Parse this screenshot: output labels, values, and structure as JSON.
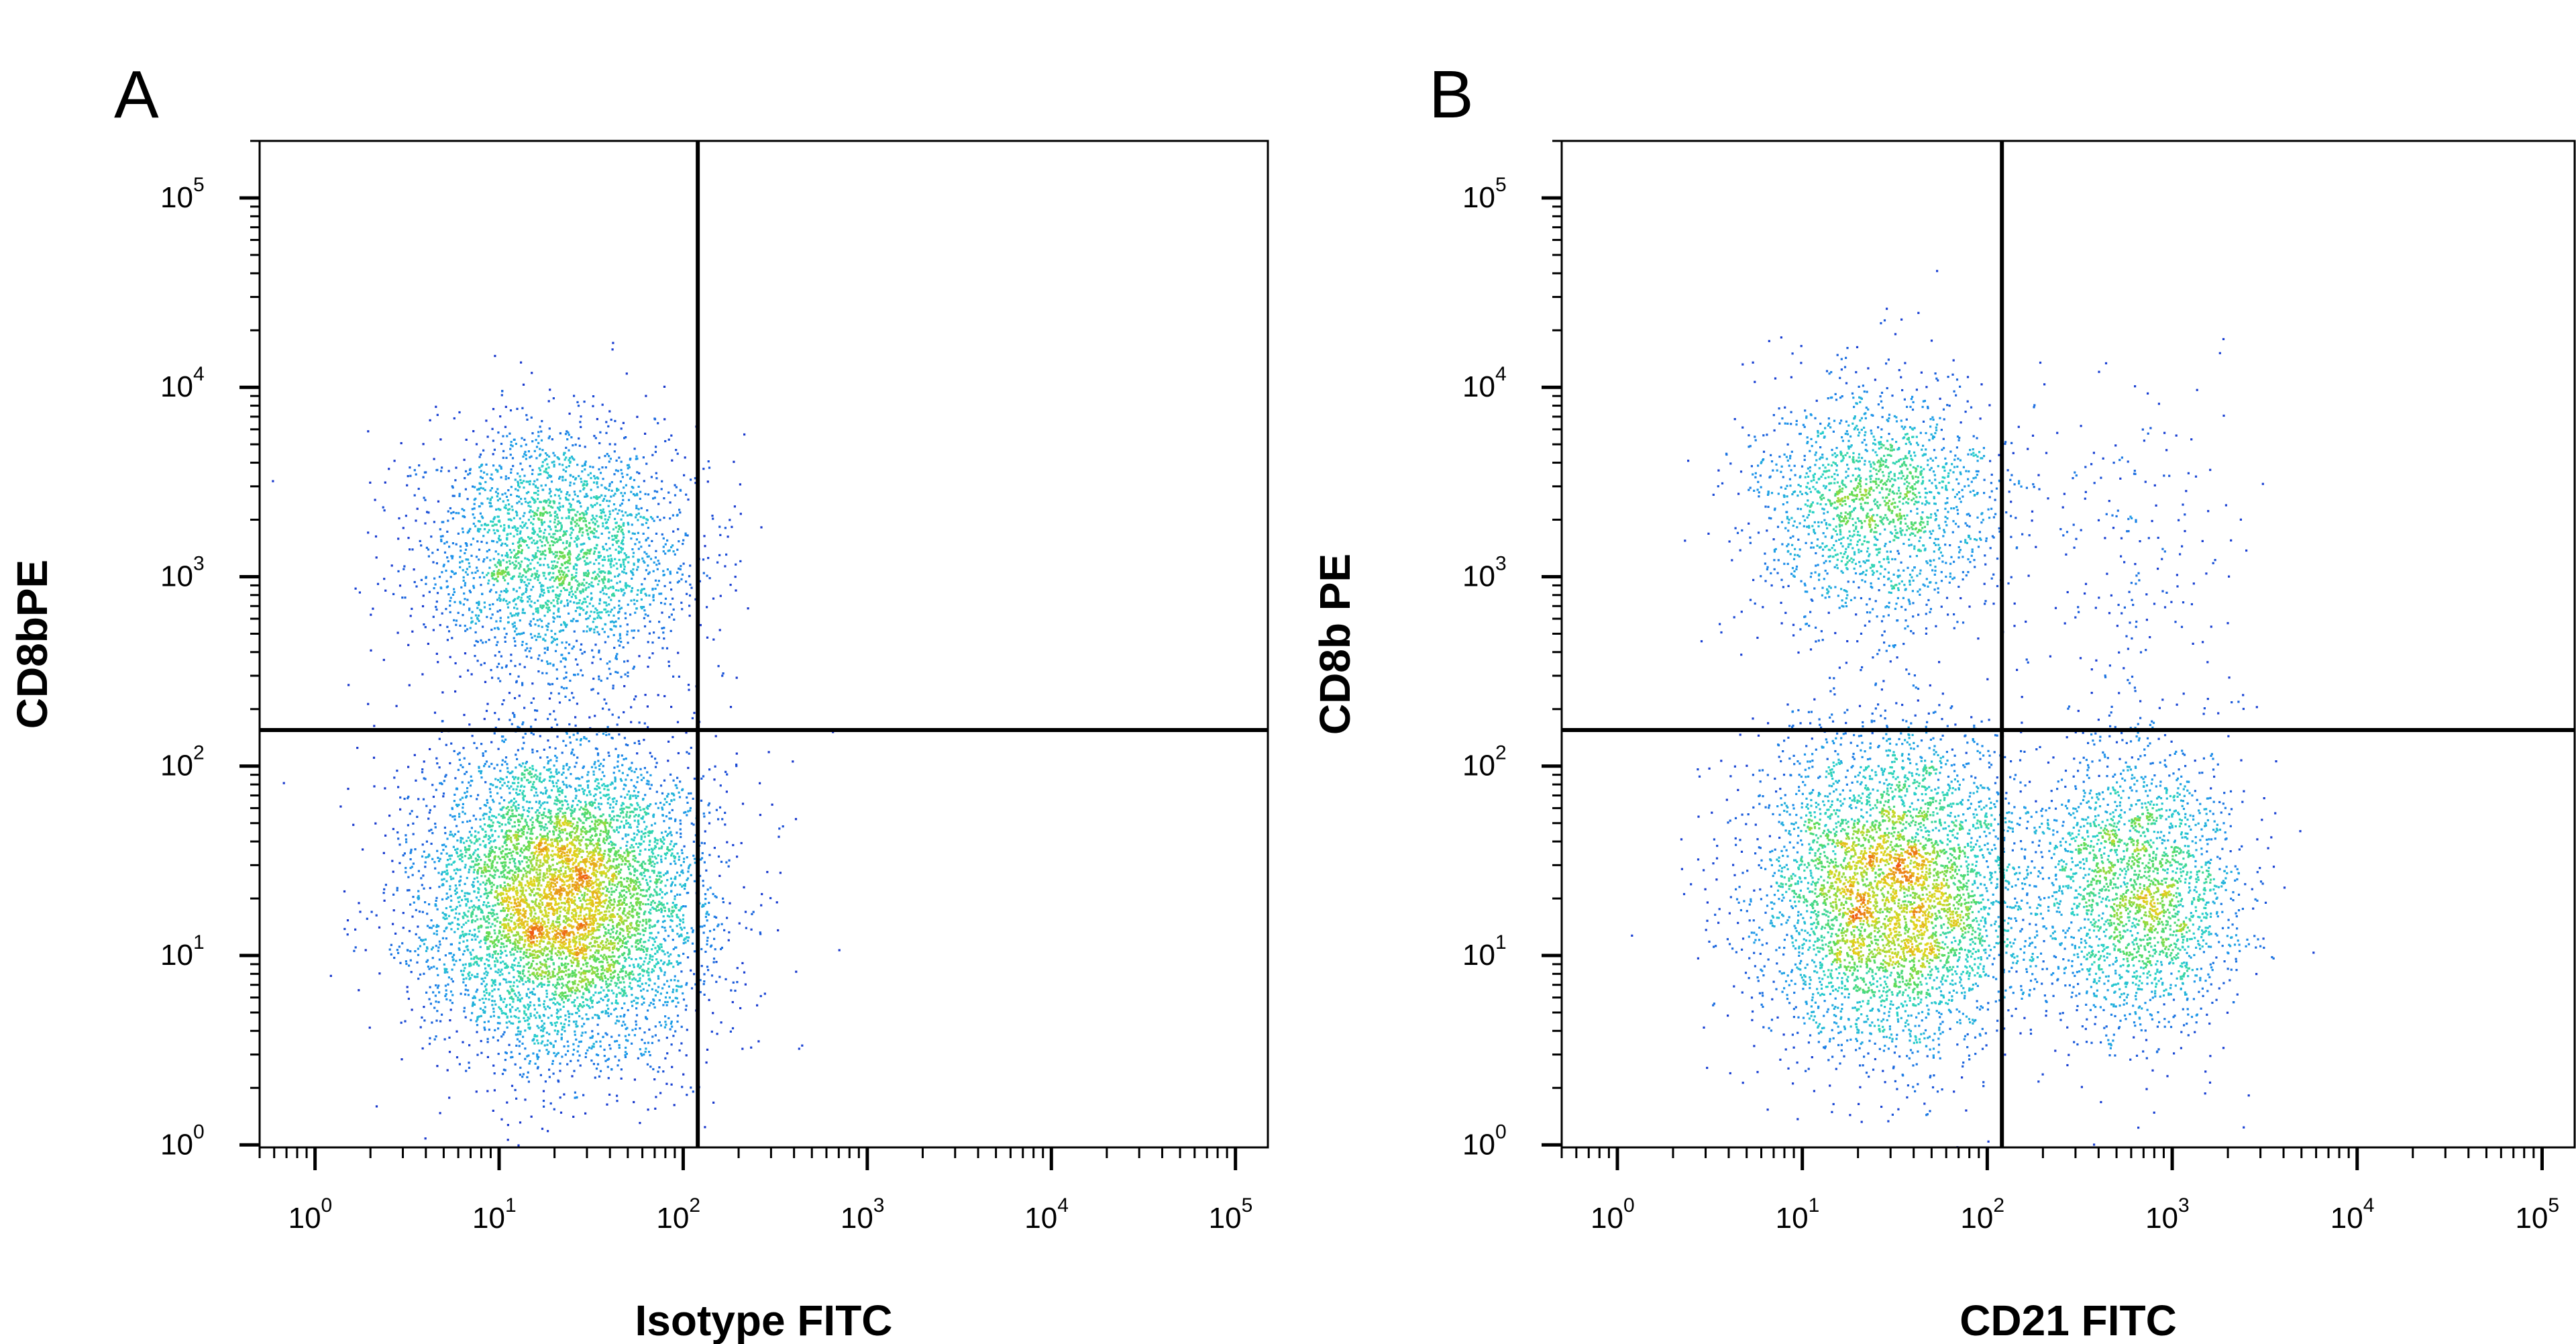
{
  "chart_data": [
    {
      "type": "scatter",
      "panel_label": "A",
      "xlabel": "Isotype FITC",
      "ylabel": "CD8bPE",
      "x_scale": "log",
      "y_scale": "log",
      "xlim": [
        0.5,
        150000
      ],
      "ylim": [
        0.97,
        200000
      ],
      "x_ticks": [
        {
          "base": "10",
          "exp": "0",
          "value": 1
        },
        {
          "base": "10",
          "exp": "1",
          "value": 10
        },
        {
          "base": "10",
          "exp": "2",
          "value": 100
        },
        {
          "base": "10",
          "exp": "3",
          "value": 1000
        },
        {
          "base": "10",
          "exp": "4",
          "value": 10000
        },
        {
          "base": "10",
          "exp": "5",
          "value": 100000
        }
      ],
      "y_ticks": [
        {
          "base": "10",
          "exp": "0",
          "value": 1
        },
        {
          "base": "10",
          "exp": "1",
          "value": 10
        },
        {
          "base": "10",
          "exp": "2",
          "value": 100
        },
        {
          "base": "10",
          "exp": "3",
          "value": 1000
        },
        {
          "base": "10",
          "exp": "4",
          "value": 10000
        },
        {
          "base": "10",
          "exp": "5",
          "value": 100000
        }
      ],
      "quadrant_gate": {
        "x": 120,
        "y": 155
      },
      "populations": [
        {
          "name": "CD8b- / isotype-",
          "center_x": 22,
          "center_y": 20,
          "spread_log_x": 0.38,
          "spread_log_y": 0.42,
          "weight": 0.72
        },
        {
          "name": "CD8b+ / isotype-",
          "center_x": 20,
          "center_y": 1400,
          "spread_log_x": 0.36,
          "spread_log_y": 0.32,
          "weight": 0.28
        }
      ],
      "grid": false,
      "legend": "none"
    },
    {
      "type": "scatter",
      "panel_label": "B",
      "xlabel": "CD21 FITC",
      "ylabel": "CD8b PE",
      "x_scale": "log",
      "y_scale": "log",
      "xlim": [
        0.5,
        150000
      ],
      "ylim": [
        0.97,
        200000
      ],
      "x_ticks": [
        {
          "base": "10",
          "exp": "0",
          "value": 1
        },
        {
          "base": "10",
          "exp": "1",
          "value": 10
        },
        {
          "base": "10",
          "exp": "2",
          "value": 100
        },
        {
          "base": "10",
          "exp": "3",
          "value": 1000
        },
        {
          "base": "10",
          "exp": "4",
          "value": 10000
        },
        {
          "base": "10",
          "exp": "5",
          "value": 100000
        }
      ],
      "y_ticks": [
        {
          "base": "10",
          "exp": "0",
          "value": 1
        },
        {
          "base": "10",
          "exp": "1",
          "value": 10
        },
        {
          "base": "10",
          "exp": "2",
          "value": 100
        },
        {
          "base": "10",
          "exp": "3",
          "value": 1000
        },
        {
          "base": "10",
          "exp": "4",
          "value": 10000
        },
        {
          "base": "10",
          "exp": "5",
          "value": 100000
        }
      ],
      "quadrant_gate": {
        "x": 120,
        "y": 155
      },
      "populations": [
        {
          "name": "CD8b- / CD21-",
          "center_x": 30,
          "center_y": 22,
          "spread_log_x": 0.36,
          "spread_log_y": 0.42,
          "weight": 0.52
        },
        {
          "name": "CD8b- / CD21+",
          "center_x": 650,
          "center_y": 22,
          "spread_log_x": 0.28,
          "spread_log_y": 0.38,
          "weight": 0.26
        },
        {
          "name": "CD8b+ / CD21-",
          "center_x": 25,
          "center_y": 2500,
          "spread_log_x": 0.34,
          "spread_log_y": 0.32,
          "weight": 0.2
        },
        {
          "name": "CD8b+ / CD21+",
          "center_x": 500,
          "center_y": 1500,
          "spread_log_x": 0.3,
          "spread_log_y": 0.45,
          "weight": 0.02
        }
      ],
      "grid": false,
      "legend": "none"
    }
  ],
  "colors": {
    "low_density": "#1a1aa0",
    "mid_density": "#1faee8",
    "high_density": "#e8d21a",
    "peak_density": "#f05a14",
    "gate_line": "#000000",
    "axis": "#000000"
  }
}
